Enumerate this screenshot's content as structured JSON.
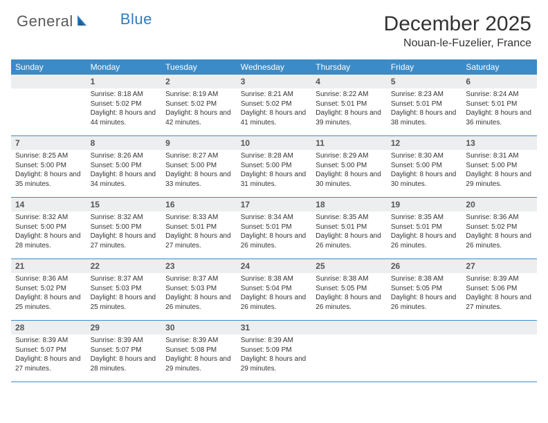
{
  "brand": {
    "part1": "General",
    "part2": "Blue"
  },
  "title": "December 2025",
  "location": "Nouan-le-Fuzelier, France",
  "colors": {
    "header_bg": "#3b8bc8",
    "daynum_bg": "#eceeef",
    "text": "#333333",
    "row_border": "#3b8bc8"
  },
  "weekdays": [
    "Sunday",
    "Monday",
    "Tuesday",
    "Wednesday",
    "Thursday",
    "Friday",
    "Saturday"
  ],
  "weeks": [
    [
      null,
      {
        "n": "1",
        "sr": "Sunrise: 8:18 AM",
        "ss": "Sunset: 5:02 PM",
        "dl": "Daylight: 8 hours and 44 minutes."
      },
      {
        "n": "2",
        "sr": "Sunrise: 8:19 AM",
        "ss": "Sunset: 5:02 PM",
        "dl": "Daylight: 8 hours and 42 minutes."
      },
      {
        "n": "3",
        "sr": "Sunrise: 8:21 AM",
        "ss": "Sunset: 5:02 PM",
        "dl": "Daylight: 8 hours and 41 minutes."
      },
      {
        "n": "4",
        "sr": "Sunrise: 8:22 AM",
        "ss": "Sunset: 5:01 PM",
        "dl": "Daylight: 8 hours and 39 minutes."
      },
      {
        "n": "5",
        "sr": "Sunrise: 8:23 AM",
        "ss": "Sunset: 5:01 PM",
        "dl": "Daylight: 8 hours and 38 minutes."
      },
      {
        "n": "6",
        "sr": "Sunrise: 8:24 AM",
        "ss": "Sunset: 5:01 PM",
        "dl": "Daylight: 8 hours and 36 minutes."
      }
    ],
    [
      {
        "n": "7",
        "sr": "Sunrise: 8:25 AM",
        "ss": "Sunset: 5:00 PM",
        "dl": "Daylight: 8 hours and 35 minutes."
      },
      {
        "n": "8",
        "sr": "Sunrise: 8:26 AM",
        "ss": "Sunset: 5:00 PM",
        "dl": "Daylight: 8 hours and 34 minutes."
      },
      {
        "n": "9",
        "sr": "Sunrise: 8:27 AM",
        "ss": "Sunset: 5:00 PM",
        "dl": "Daylight: 8 hours and 33 minutes."
      },
      {
        "n": "10",
        "sr": "Sunrise: 8:28 AM",
        "ss": "Sunset: 5:00 PM",
        "dl": "Daylight: 8 hours and 31 minutes."
      },
      {
        "n": "11",
        "sr": "Sunrise: 8:29 AM",
        "ss": "Sunset: 5:00 PM",
        "dl": "Daylight: 8 hours and 30 minutes."
      },
      {
        "n": "12",
        "sr": "Sunrise: 8:30 AM",
        "ss": "Sunset: 5:00 PM",
        "dl": "Daylight: 8 hours and 30 minutes."
      },
      {
        "n": "13",
        "sr": "Sunrise: 8:31 AM",
        "ss": "Sunset: 5:00 PM",
        "dl": "Daylight: 8 hours and 29 minutes."
      }
    ],
    [
      {
        "n": "14",
        "sr": "Sunrise: 8:32 AM",
        "ss": "Sunset: 5:00 PM",
        "dl": "Daylight: 8 hours and 28 minutes."
      },
      {
        "n": "15",
        "sr": "Sunrise: 8:32 AM",
        "ss": "Sunset: 5:00 PM",
        "dl": "Daylight: 8 hours and 27 minutes."
      },
      {
        "n": "16",
        "sr": "Sunrise: 8:33 AM",
        "ss": "Sunset: 5:01 PM",
        "dl": "Daylight: 8 hours and 27 minutes."
      },
      {
        "n": "17",
        "sr": "Sunrise: 8:34 AM",
        "ss": "Sunset: 5:01 PM",
        "dl": "Daylight: 8 hours and 26 minutes."
      },
      {
        "n": "18",
        "sr": "Sunrise: 8:35 AM",
        "ss": "Sunset: 5:01 PM",
        "dl": "Daylight: 8 hours and 26 minutes."
      },
      {
        "n": "19",
        "sr": "Sunrise: 8:35 AM",
        "ss": "Sunset: 5:01 PM",
        "dl": "Daylight: 8 hours and 26 minutes."
      },
      {
        "n": "20",
        "sr": "Sunrise: 8:36 AM",
        "ss": "Sunset: 5:02 PM",
        "dl": "Daylight: 8 hours and 26 minutes."
      }
    ],
    [
      {
        "n": "21",
        "sr": "Sunrise: 8:36 AM",
        "ss": "Sunset: 5:02 PM",
        "dl": "Daylight: 8 hours and 25 minutes."
      },
      {
        "n": "22",
        "sr": "Sunrise: 8:37 AM",
        "ss": "Sunset: 5:03 PM",
        "dl": "Daylight: 8 hours and 25 minutes."
      },
      {
        "n": "23",
        "sr": "Sunrise: 8:37 AM",
        "ss": "Sunset: 5:03 PM",
        "dl": "Daylight: 8 hours and 26 minutes."
      },
      {
        "n": "24",
        "sr": "Sunrise: 8:38 AM",
        "ss": "Sunset: 5:04 PM",
        "dl": "Daylight: 8 hours and 26 minutes."
      },
      {
        "n": "25",
        "sr": "Sunrise: 8:38 AM",
        "ss": "Sunset: 5:05 PM",
        "dl": "Daylight: 8 hours and 26 minutes."
      },
      {
        "n": "26",
        "sr": "Sunrise: 8:38 AM",
        "ss": "Sunset: 5:05 PM",
        "dl": "Daylight: 8 hours and 26 minutes."
      },
      {
        "n": "27",
        "sr": "Sunrise: 8:39 AM",
        "ss": "Sunset: 5:06 PM",
        "dl": "Daylight: 8 hours and 27 minutes."
      }
    ],
    [
      {
        "n": "28",
        "sr": "Sunrise: 8:39 AM",
        "ss": "Sunset: 5:07 PM",
        "dl": "Daylight: 8 hours and 27 minutes."
      },
      {
        "n": "29",
        "sr": "Sunrise: 8:39 AM",
        "ss": "Sunset: 5:07 PM",
        "dl": "Daylight: 8 hours and 28 minutes."
      },
      {
        "n": "30",
        "sr": "Sunrise: 8:39 AM",
        "ss": "Sunset: 5:08 PM",
        "dl": "Daylight: 8 hours and 29 minutes."
      },
      {
        "n": "31",
        "sr": "Sunrise: 8:39 AM",
        "ss": "Sunset: 5:09 PM",
        "dl": "Daylight: 8 hours and 29 minutes."
      },
      null,
      null,
      null
    ]
  ]
}
